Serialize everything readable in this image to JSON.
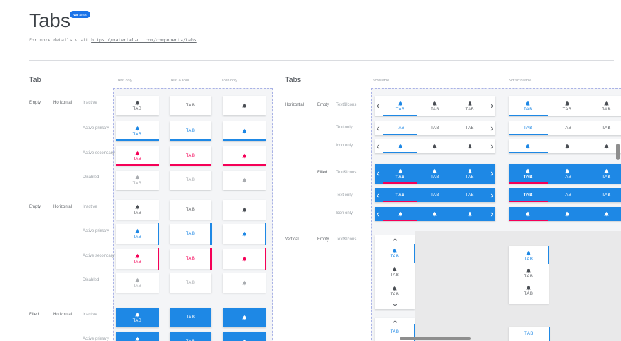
{
  "header": {
    "title": "Tabs",
    "badge": "Variants",
    "subtitle_prefix": "For more details visit",
    "subtitle_link": "https://material-ui.com/components/tabs"
  },
  "labels": {
    "tab": "TAB"
  },
  "colors": {
    "primary": "#1E88E5",
    "secondary": "#F50057",
    "badge": "#1A73E8",
    "canvas": "#E9E9EA",
    "frame_border": "#A9B2E6"
  },
  "tab_section": {
    "title": "Tab",
    "columns": [
      "Text only",
      "Text & Icon",
      "Icon only"
    ],
    "groups": [
      {
        "variant": "Empty",
        "orientation": "Horizontal",
        "states": [
          "Inactive",
          "Active primary",
          "Active secondary",
          "Disabled"
        ]
      },
      {
        "variant": "Empty",
        "orientation": "Horizontal",
        "states": [
          "Inactive",
          "Active primary",
          "Active secondary",
          "Disabled"
        ]
      },
      {
        "variant": "Filled",
        "orientation": "Horizontal",
        "states": [
          "Inactive",
          "Active primary"
        ]
      }
    ]
  },
  "tabs_section": {
    "title": "Tabs",
    "columns": [
      "Scrollable",
      "Not scrollable"
    ],
    "groups": [
      {
        "orientation": "Horizontal",
        "variant": "Empty",
        "rows": [
          "Text&Icons",
          "Text only",
          "Icon only"
        ]
      },
      {
        "variant": "Filled",
        "rows": [
          "Text&Icons",
          "Text only",
          "Icon only"
        ]
      },
      {
        "orientation": "Vertical",
        "variant": "Empty",
        "rows": [
          "Text&Icons"
        ]
      }
    ]
  }
}
